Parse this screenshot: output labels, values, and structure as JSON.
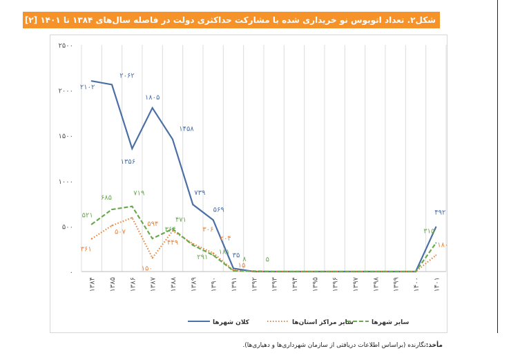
{
  "title": "شکل۲. تعداد اتوبوس نو خریداری شده با مشارکت حداکثری دولت در فاصله سال‌های ۱۳۸۴ تا ۱۴۰۱ [۲]",
  "source_label": "مأخذ:",
  "source_text": "نگارنده (براساس اطلاعات دریافتی از سازمان شهرداری‌ها و دهیاری‌ها).",
  "chart_data": {
    "type": "line",
    "title": "",
    "categories": [
      "۱۳۸۴",
      "۱۳۸۵",
      "۱۳۸۶",
      "۱۳۸۷",
      "۱۳۸۸",
      "۱۳۸۹",
      "۱۳۹۰",
      "۱۳۹۱",
      "۱۳۹۲",
      "۱۳۹۳",
      "۱۳۹۴",
      "۱۳۹۵",
      "۱۳۹۶",
      "۱۳۹۷",
      "۱۳۹۸",
      "۱۳۹۹",
      "۱۴۰۰",
      "۱۴۰۱"
    ],
    "ylim": [
      0,
      2500
    ],
    "yticks": [
      0,
      500,
      1000,
      1500,
      2000,
      2500
    ],
    "ytick_labels": [
      "۰",
      "۵۰۰",
      "۱۰۰۰",
      "۱۵۰۰",
      "۲۰۰۰",
      "۲۵۰۰"
    ],
    "grid": "vertical",
    "legend": "bottom",
    "series": [
      {
        "name": "کلان شهرها",
        "color": "#4a6fa5",
        "style": "solid",
        "values": [
          2102,
          2062,
          1356,
          1805,
          1458,
          739,
          569,
          35,
          0,
          0,
          0,
          0,
          0,
          0,
          0,
          0,
          0,
          492
        ],
        "labels": {
          "0": "۲۱۰۲",
          "1": "۲۰۶۲",
          "2": "۱۳۵۶",
          "3": "۱۸۰۵",
          "4": "۱۴۵۸",
          "5": "۷۳۹",
          "6": "۵۶۹",
          "7": "۳۵",
          "17": "۴۹۲"
        }
      },
      {
        "name": "سایر مراکز استان‌ها",
        "color": "#e8853d",
        "style": "dotted",
        "values": [
          361,
          507,
          594,
          150,
          449,
          306,
          204,
          15,
          0,
          0,
          0,
          0,
          0,
          0,
          0,
          0,
          0,
          180
        ],
        "labels": {
          "0": "۳۶۱",
          "1": "۵۰۷",
          "2": "۵۹۴",
          "3": "۱۵۰",
          "4": "۴۴۹",
          "5": "۳۰۶",
          "6": "۲۰۴",
          "7": "۱۵",
          "17": "۱۸۰"
        }
      },
      {
        "name": "سایر شهرها",
        "color": "#6aa84f",
        "style": "dashed",
        "values": [
          521,
          685,
          719,
          364,
          471,
          291,
          181,
          8,
          5,
          0,
          0,
          0,
          0,
          0,
          0,
          0,
          0,
          315
        ],
        "labels": {
          "0": "۵۲۱",
          "1": "۶۸۵",
          "2": "۷۱۹",
          "3": "۳۶۴",
          "4": "۴۷۱",
          "5": "۲۹۱",
          "6": "۱۸۱",
          "7": "۸",
          "8": "۵",
          "17": "۳۱۵"
        }
      }
    ]
  }
}
